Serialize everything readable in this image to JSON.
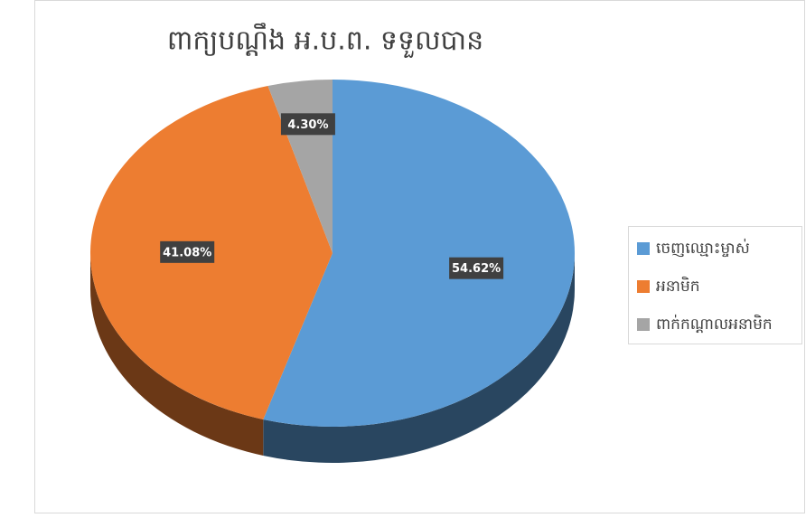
{
  "chart_data": {
    "type": "pie",
    "title": "ពាក្យបណ្តឹង អ.ប.ព. ទទួលបាន",
    "categories": [
      "ចេញឈ្មោះម្ចាស់",
      "អនាមិក",
      "ពាក់កណ្តាលអនាមិក"
    ],
    "values": [
      54.62,
      41.08,
      4.3
    ],
    "value_labels": [
      "54.62%",
      "41.08%",
      "4.30%"
    ],
    "colors": [
      "#5b9bd5",
      "#ed7d31",
      "#a5a5a5"
    ],
    "legend": "right"
  }
}
